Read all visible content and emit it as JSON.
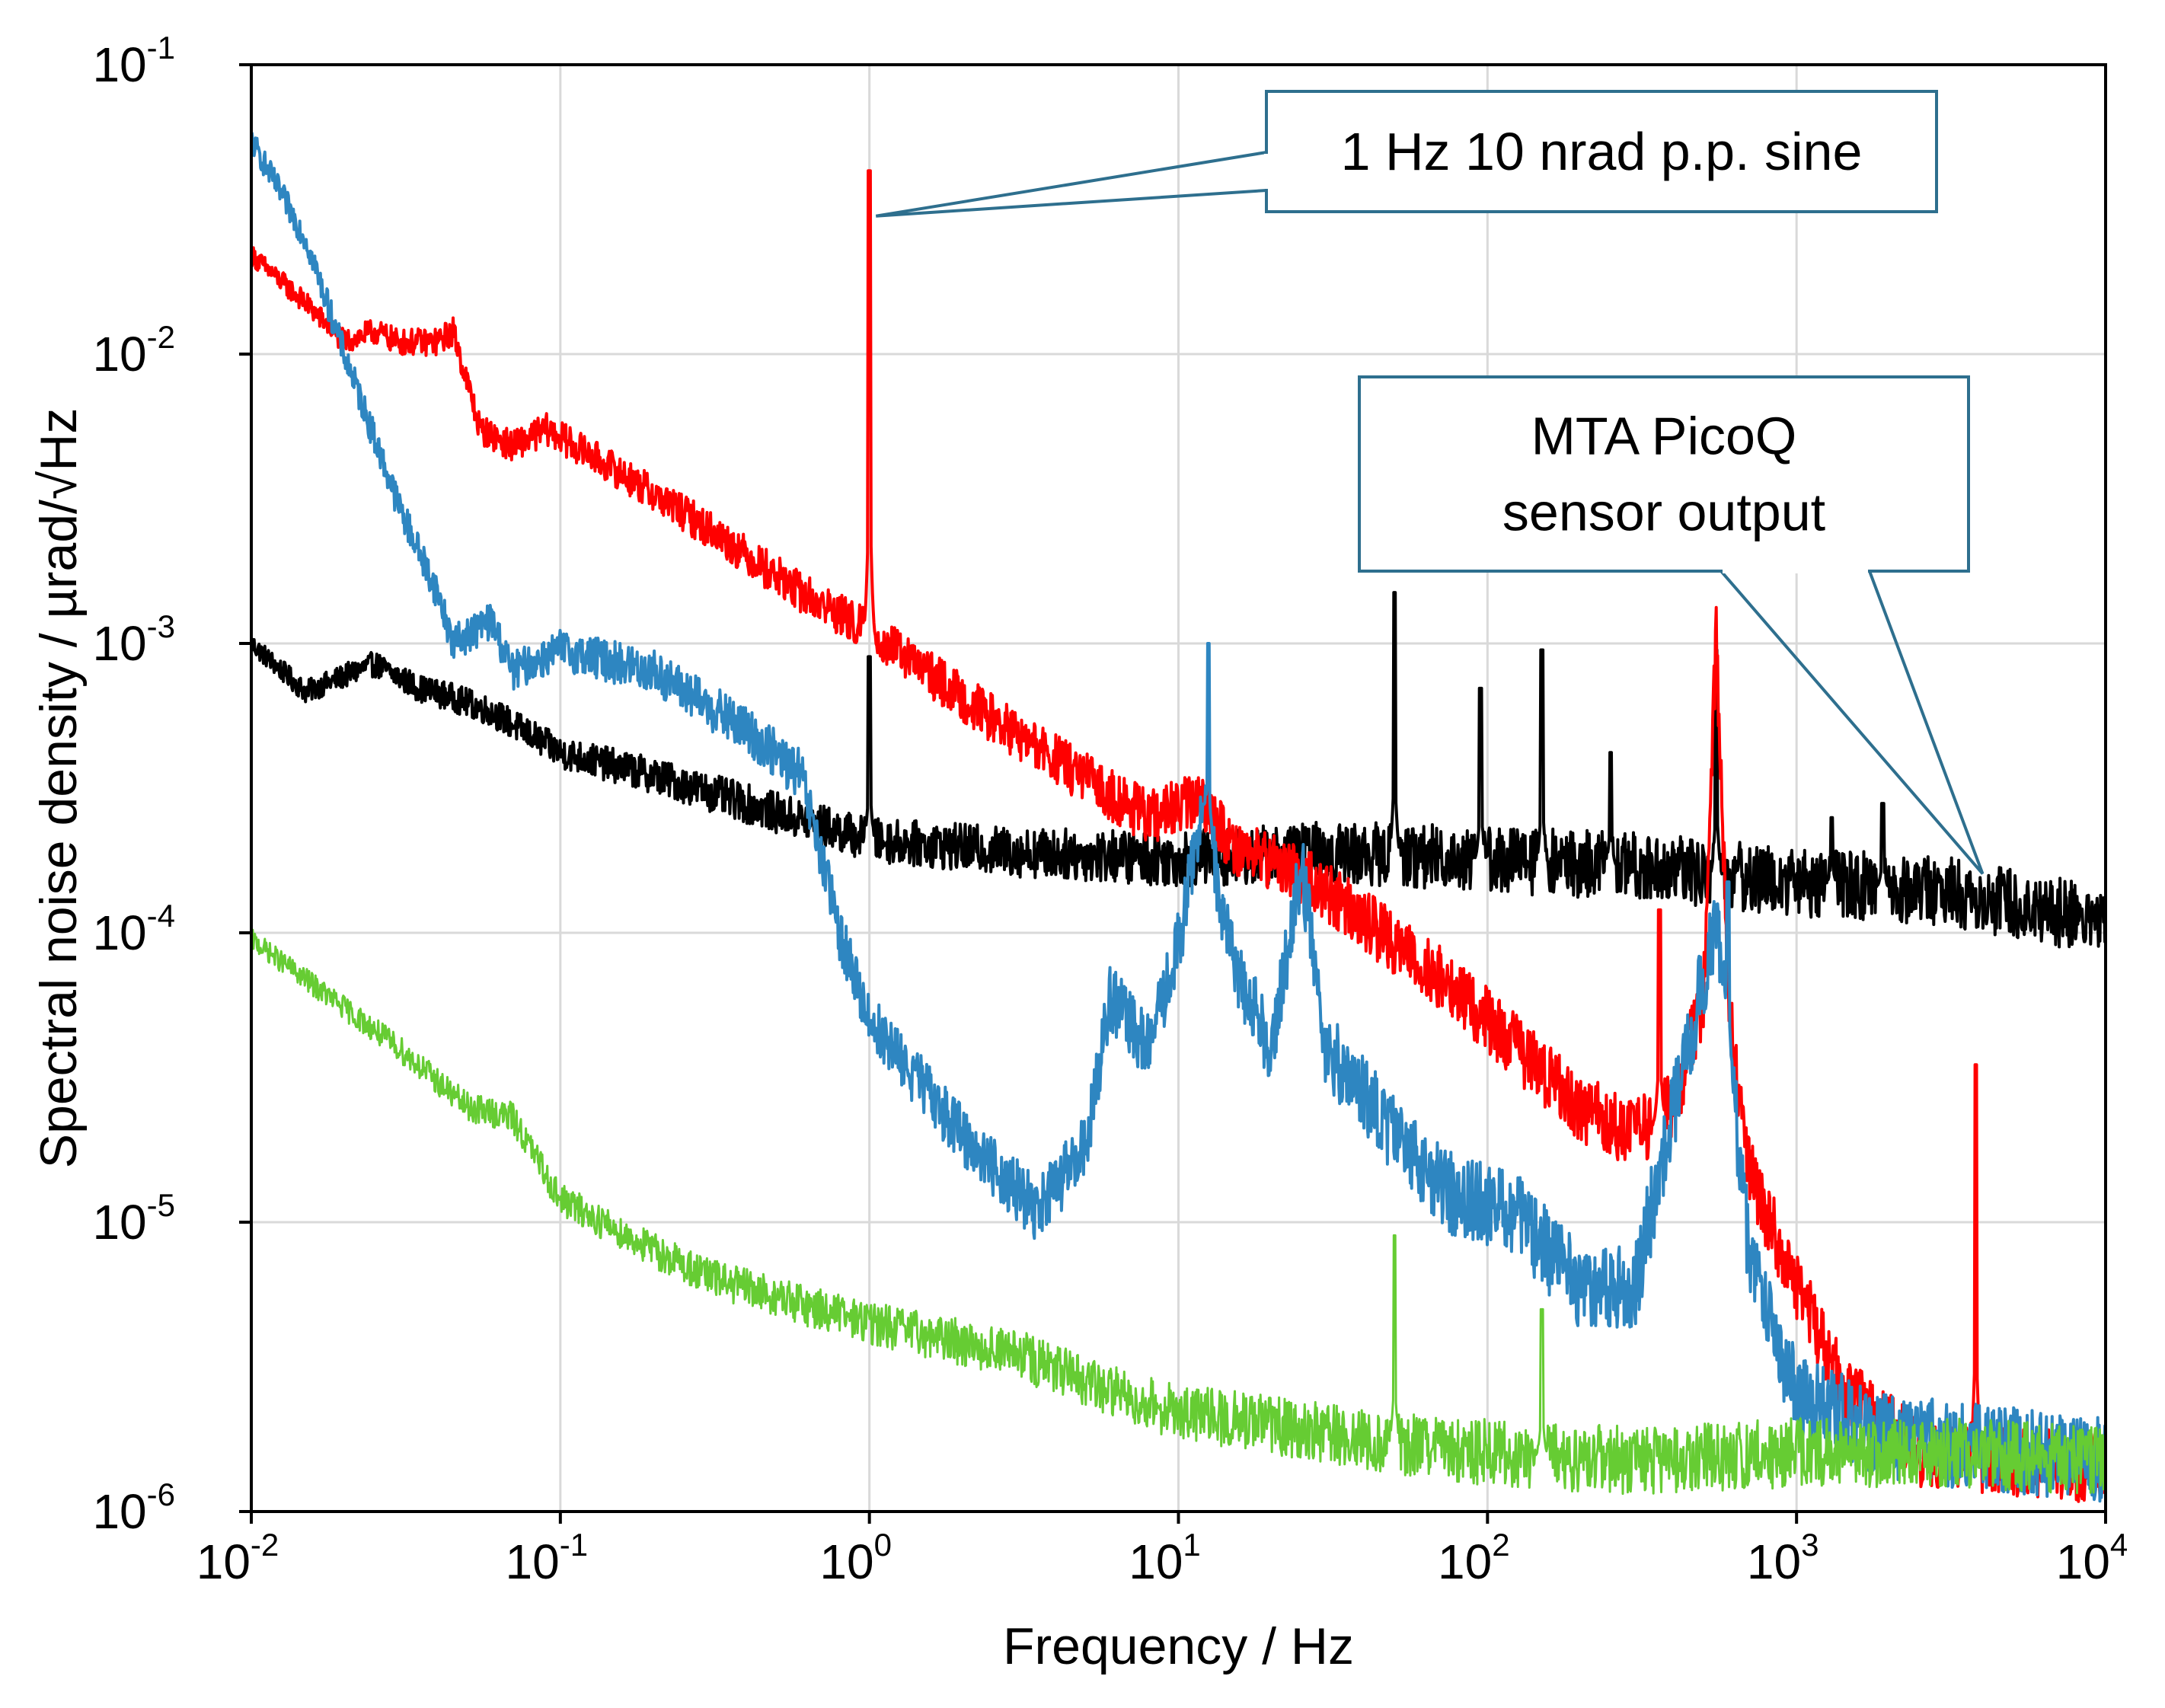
{
  "chart_data": {
    "type": "line",
    "title": "",
    "xlabel": "Frequency / Hz",
    "ylabel": "Spectral noise density / µrad/√Hz",
    "xscale": "log",
    "yscale": "log",
    "xlim": [
      0.01,
      10000
    ],
    "ylim": [
      1e-06,
      0.1
    ],
    "grid": true,
    "x_ticks": [
      {
        "base": "10",
        "exp": "-2",
        "value": 0.01
      },
      {
        "base": "10",
        "exp": "-1",
        "value": 0.1
      },
      {
        "base": "10",
        "exp": "0",
        "value": 1
      },
      {
        "base": "10",
        "exp": "1",
        "value": 10
      },
      {
        "base": "10",
        "exp": "2",
        "value": 100
      },
      {
        "base": "10",
        "exp": "3",
        "value": 1000
      },
      {
        "base": "10",
        "exp": "4",
        "value": 10000
      }
    ],
    "y_ticks": [
      {
        "base": "10",
        "exp": "-6",
        "value": 1e-06
      },
      {
        "base": "10",
        "exp": "-5",
        "value": 1e-05
      },
      {
        "base": "10",
        "exp": "-4",
        "value": 0.0001
      },
      {
        "base": "10",
        "exp": "-3",
        "value": 0.001
      },
      {
        "base": "10",
        "exp": "-2",
        "value": 0.01
      },
      {
        "base": "10",
        "exp": "-1",
        "value": 0.1
      }
    ],
    "annotations": [
      {
        "name": "sine-callout",
        "lines": [
          "1 Hz 10 nrad p.p. sine"
        ],
        "points_to": {
          "x": 1.05,
          "y": 0.03
        }
      },
      {
        "name": "sensor-callout",
        "lines": [
          "MTA PicoQ",
          "sensor output"
        ],
        "points_to": {
          "x": 4000,
          "y": 0.00016
        }
      }
    ],
    "series": [
      {
        "name": "MTA PicoQ sensor output",
        "color": "#000000",
        "noise": 0.12,
        "x": [
          0.01,
          0.015,
          0.025,
          0.035,
          0.045,
          0.06,
          0.1,
          0.2,
          0.5,
          1,
          3,
          10,
          30,
          100,
          300,
          1000,
          3000,
          10000
        ],
        "y": [
          0.001,
          0.00068,
          0.00085,
          0.0007,
          0.00065,
          0.00058,
          0.00042,
          0.00035,
          0.00026,
          0.00021,
          0.00019,
          0.00018,
          0.00019,
          0.00018,
          0.00017,
          0.00015,
          0.00014,
          0.00011
        ],
        "peaks": [
          {
            "x": 1.0,
            "y": 0.0009
          },
          {
            "x": 50,
            "y": 0.0015
          },
          {
            "x": 95,
            "y": 0.0007
          },
          {
            "x": 150,
            "y": 0.00095
          },
          {
            "x": 250,
            "y": 0.00042
          },
          {
            "x": 550,
            "y": 0.00095
          },
          {
            "x": 1300,
            "y": 0.00025
          },
          {
            "x": 1900,
            "y": 0.00028
          }
        ]
      },
      {
        "name": "red trace",
        "color": "#ff0000",
        "noise": 0.12,
        "x": [
          0.01,
          0.015,
          0.02,
          0.025,
          0.03,
          0.04,
          0.045,
          0.055,
          0.07,
          0.09,
          0.15,
          0.3,
          0.6,
          1,
          3,
          8,
          12,
          15,
          25,
          40,
          60,
          100,
          200,
          300,
          400,
          500,
          550,
          600,
          700,
          1000,
          1500,
          2500,
          10000
        ],
        "y": [
          0.022,
          0.015,
          0.011,
          0.012,
          0.011,
          0.011,
          0.012,
          0.0055,
          0.0048,
          0.0055,
          0.004,
          0.0025,
          0.0015,
          0.0011,
          0.00048,
          0.00025,
          0.00029,
          0.0002,
          0.00016,
          0.00011,
          8e-05,
          5e-05,
          2.5e-05,
          2e-05,
          2.5e-05,
          6e-05,
          0.0011,
          6e-05,
          1.5e-05,
          6e-06,
          2.5e-06,
          1.6e-06,
          1.4e-06
        ],
        "peaks": [
          {
            "x": 1.0,
            "y": 0.043
          },
          {
            "x": 360,
            "y": 0.00012
          },
          {
            "x": 3800,
            "y": 3.5e-05
          }
        ]
      },
      {
        "name": "blue trace",
        "color": "#2e86c1",
        "noise": 0.15,
        "x": [
          0.01,
          0.015,
          0.02,
          0.03,
          0.04,
          0.045,
          0.06,
          0.07,
          0.1,
          0.2,
          0.4,
          0.6,
          0.7,
          0.8,
          1,
          2,
          3.5,
          5,
          6,
          8,
          10,
          12,
          15,
          20,
          25,
          30,
          50,
          80,
          120,
          200,
          300,
          400,
          550,
          700,
          1000,
          2000,
          10000
        ],
        "y": [
          0.055,
          0.025,
          0.01,
          0.003,
          0.0015,
          0.001,
          0.0012,
          0.0008,
          0.00095,
          0.0008,
          0.0005,
          0.00035,
          0.00018,
          0.0001,
          5e-05,
          2e-05,
          1.1e-05,
          1.8e-05,
          6e-05,
          4e-05,
          9e-05,
          0.00028,
          8e-05,
          4e-05,
          0.00017,
          4e-05,
          2e-05,
          1.2e-05,
          1.1e-05,
          6e-06,
          6e-06,
          2.5e-05,
          0.00011,
          8e-06,
          2.5e-06,
          1.8e-06,
          1.5e-06
        ],
        "peaks": [
          {
            "x": 12.5,
            "y": 0.001
          },
          {
            "x": 600,
            "y": 0.00015
          }
        ]
      },
      {
        "name": "green trace",
        "color": "#66cc33",
        "noise": 0.12,
        "x": [
          0.01,
          0.02,
          0.03,
          0.05,
          0.07,
          0.1,
          0.2,
          0.3,
          0.5,
          1,
          3,
          5,
          10,
          20,
          50,
          100,
          300,
          1000,
          3000,
          10000
        ],
        "y": [
          9.5e-05,
          5.5e-05,
          4e-05,
          2.5e-05,
          2.3e-05,
          1.2e-05,
          8e-06,
          6.5e-06,
          5.5e-06,
          4.5e-06,
          3.5e-06,
          2.8e-06,
          2.2e-06,
          2e-06,
          1.7e-06,
          1.6e-06,
          1.5e-06,
          1.6e-06,
          1.6e-06,
          1.5e-06
        ],
        "peaks": [
          {
            "x": 50,
            "y": 9e-06
          },
          {
            "x": 150,
            "y": 5e-06
          }
        ]
      }
    ]
  }
}
